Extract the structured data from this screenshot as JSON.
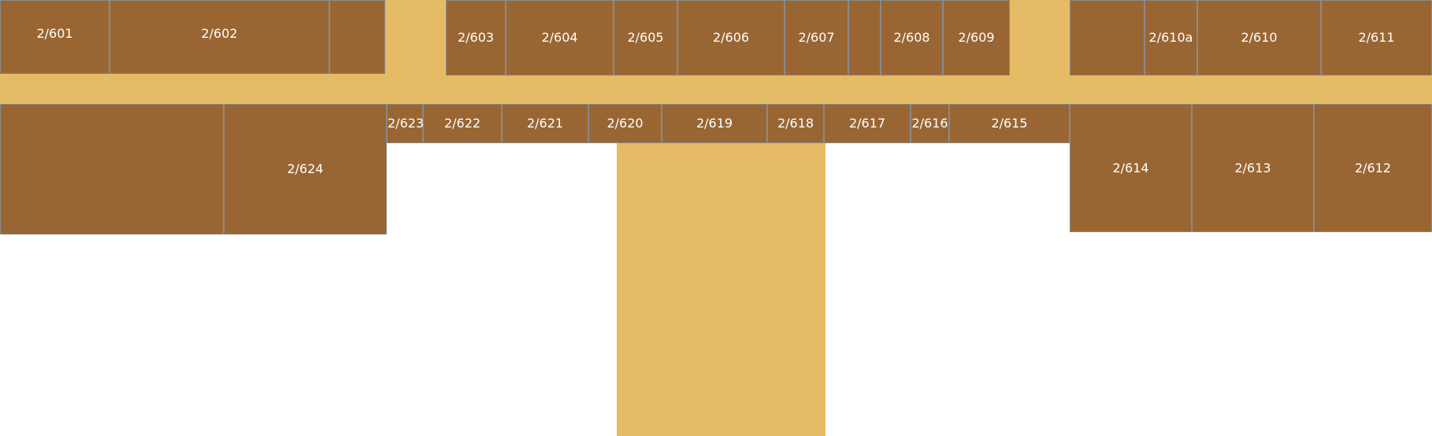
{
  "colors": {
    "room": "#996633",
    "corridor": "#e6bb66",
    "border": "#8a8a8a",
    "label": "#ffffff",
    "background": "#ffffff"
  },
  "rooms": {
    "r601": "2/601",
    "r602": "2/602",
    "r603": "2/603",
    "r604": "2/604",
    "r605": "2/605",
    "r606": "2/606",
    "r607": "2/607",
    "r608": "2/608",
    "r609": "2/609",
    "r610a": "2/610a",
    "r610": "2/610",
    "r611": "2/611",
    "r612": "2/612",
    "r613": "2/613",
    "r614": "2/614",
    "r615": "2/615",
    "r616": "2/616",
    "r617": "2/617",
    "r618": "2/618",
    "r619": "2/619",
    "r620": "2/620",
    "r621": "2/621",
    "r622": "2/622",
    "r623": "2/623",
    "r624": "2/624"
  }
}
